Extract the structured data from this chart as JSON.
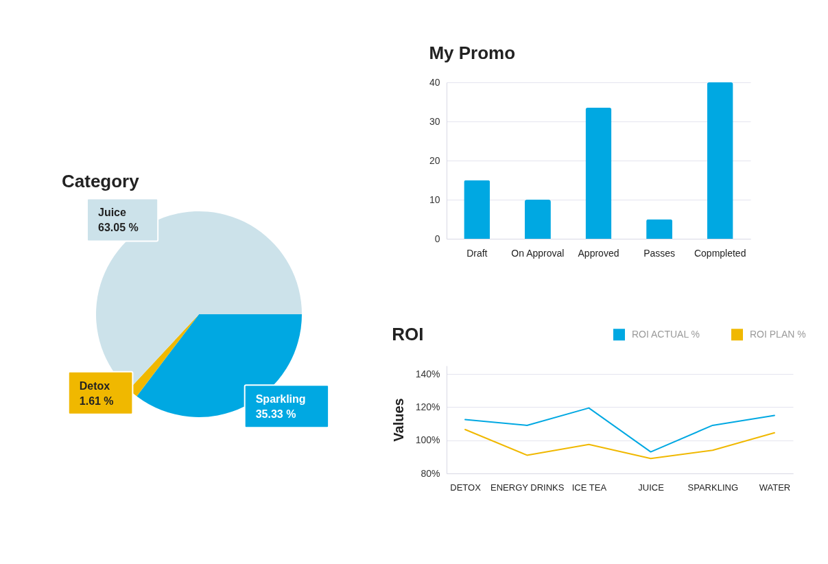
{
  "chart_data": [
    {
      "type": "bar",
      "title": "My Promo",
      "categories": [
        "Draft",
        "On Approval",
        "Approved",
        "Passes",
        "Copmpleted"
      ],
      "values": [
        15,
        10,
        33.5,
        5,
        40
      ],
      "color": "#00a8e2",
      "ylim": [
        0,
        40
      ],
      "yticks": [
        0,
        10,
        20,
        30,
        40
      ],
      "grid": "y"
    },
    {
      "type": "pie",
      "title": "Category",
      "categories": [
        "Sparkling",
        "Detox",
        "Juice"
      ],
      "values": [
        35.33,
        1.61,
        63.05
      ],
      "colors": [
        "#00a8e2",
        "#f0b800",
        "#cce2ea"
      ],
      "value_labels": [
        "35.33 %",
        "1.61 %",
        "63.05 %"
      ]
    },
    {
      "type": "line",
      "title": "ROI",
      "categories": [
        "DETOX",
        "ENERGY DRINKS",
        "ICE TEA",
        "JUICE",
        "SPARKLING",
        "WATER"
      ],
      "series": [
        {
          "name": "ROI ACTUAL %",
          "color": "#00a8e2",
          "values": [
            112.5,
            109,
            119.5,
            93,
            109,
            115
          ]
        },
        {
          "name": "ROI PLAN %",
          "color": "#f0b800",
          "values": [
            106.5,
            91,
            97.5,
            89,
            94,
            104.5
          ]
        }
      ],
      "ylabel": "Values",
      "ylim": [
        80,
        145
      ],
      "yticks": [
        {
          "value": 80,
          "label": "80%"
        },
        {
          "value": 100,
          "label": "100%"
        },
        {
          "value": 120,
          "label": "120%"
        },
        {
          "value": 140,
          "label": "140%"
        }
      ],
      "grid": "y",
      "legend": "top right",
      "line_style": "solid"
    }
  ]
}
